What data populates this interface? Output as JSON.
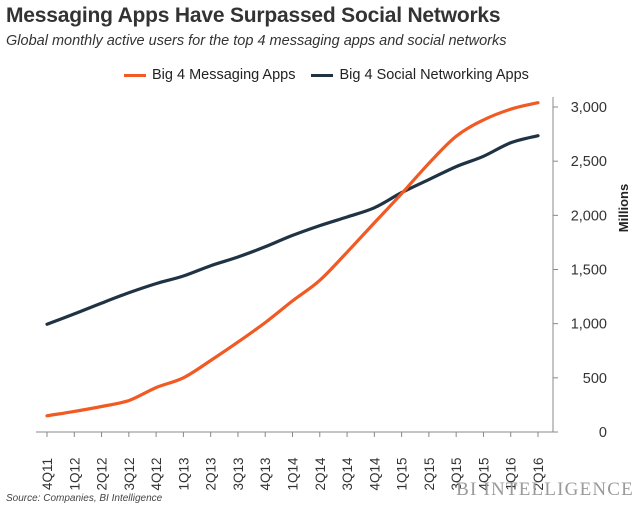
{
  "header": {
    "title": "Messaging Apps Have Surpassed Social Networks",
    "subtitle": "Global monthly active users for the top 4 messaging apps and social networks"
  },
  "colors": {
    "messaging": "#F15A22",
    "social": "#1F3344",
    "axis": "#888888",
    "text": "#333333"
  },
  "chart_data": {
    "type": "line",
    "title": "Messaging Apps Have Surpassed Social Networks",
    "subtitle": "Global monthly active users for the top 4 messaging apps and social networks",
    "xlabel": "",
    "ylabel": "Millions",
    "ylim": [
      0,
      3000
    ],
    "yticks": [
      0,
      500,
      1000,
      1500,
      2000,
      2500,
      3000
    ],
    "ytick_labels": [
      "0",
      "500",
      "1,000",
      "1,500",
      "2,000",
      "2,500",
      "3,000"
    ],
    "grid": false,
    "legend_position": "top",
    "categories": [
      "4Q11",
      "1Q12",
      "2Q12",
      "3Q12",
      "4Q12",
      "1Q13",
      "2Q13",
      "3Q13",
      "4Q13",
      "1Q14",
      "2Q14",
      "3Q14",
      "4Q14",
      "1Q15",
      "2Q15",
      "3Q15",
      "4Q15",
      "1Q16",
      "2Q16"
    ],
    "series": [
      {
        "name": "Big 4 Messaging Apps",
        "color": "#F15A22",
        "values": [
          150,
          190,
          235,
          290,
          410,
          500,
          660,
          830,
          1010,
          1210,
          1400,
          1660,
          1930,
          2200,
          2480,
          2730,
          2880,
          2980,
          3040
        ]
      },
      {
        "name": "Big 4 Social Networking Apps",
        "color": "#1F3344",
        "values": [
          995,
          1090,
          1190,
          1285,
          1370,
          1440,
          1535,
          1615,
          1710,
          1815,
          1905,
          1985,
          2070,
          2210,
          2330,
          2450,
          2545,
          2670,
          2735
        ]
      }
    ]
  },
  "footer": {
    "source": "Source: Companies, BI Intelligence",
    "brand": "BI INTELLIGENCE"
  }
}
